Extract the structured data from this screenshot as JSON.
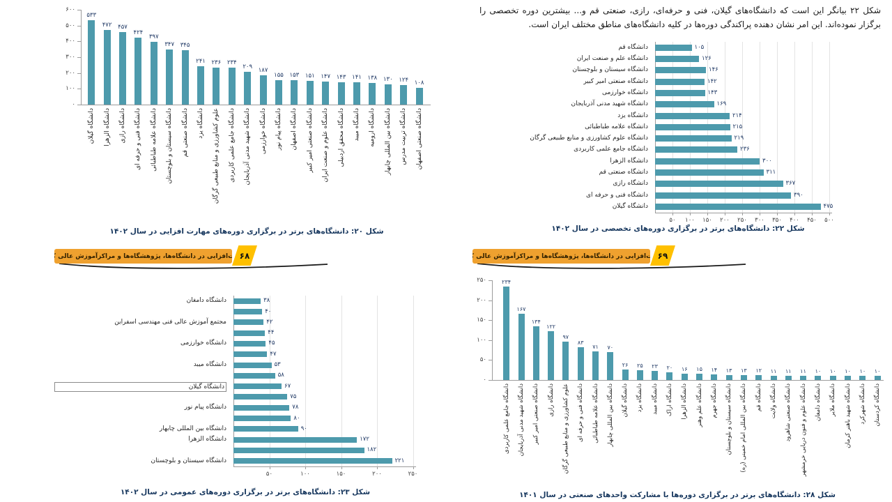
{
  "intro_text": "شکل ۲۲ بیانگر این است که دانشگاه‌های گیلان، فنی و حرفه‌ای، رازی، صنعتی قم و... بیشترین دوره تخصصی را برگزار نموده‌اند. این امر نشان دهنده پراکندگی دوره‌ها در کلیه دانشگاه‌های مناطق مختلف ایران است.",
  "banner": {
    "title": "مهارت‌افزایی در دانشگاه‌ها، پژوهشگاه‌ها و مراکزآموزش عالی کشور",
    "left_page": "۶۸",
    "right_page": "۶۹"
  },
  "colors": {
    "bar": "#4d9aac",
    "value_text": "#1f3864",
    "caption_text": "#17375e",
    "label_text": "#262626",
    "tick_text": "#404040",
    "axis": "#9b9b9b",
    "grid": "#e3e3e3",
    "banner_orange": "#efa12f",
    "banner_text": "#332200",
    "tag_yellow": "#ffc000",
    "swoosh": "#1a1a1a"
  },
  "chart_data": [
    {
      "id": "fig20",
      "type": "bar",
      "orientation": "vertical",
      "caption": "شکل ۲۰: دانشگاه‌های برتر در برگزاری دوره‌های مهارت افزایی در سال ۱۴۰۲",
      "axis_range": [
        0,
        600
      ],
      "grid": false,
      "ticks": [
        {
          "v": 600,
          "t": "۶۰۰"
        },
        {
          "v": 500,
          "t": "۵۰۰"
        },
        {
          "v": 400,
          "t": "۴۰۰"
        },
        {
          "v": 300,
          "t": "۳۰۰"
        },
        {
          "v": 200,
          "t": "۲۰۰"
        },
        {
          "v": 100,
          "t": "۱۰۰"
        },
        {
          "v": 0,
          "t": "۰"
        }
      ],
      "bars": [
        {
          "label": "دانشگاه گیلان",
          "v": 533,
          "t": "۵۳۳"
        },
        {
          "label": "دانشگاه الزهرا",
          "v": 472,
          "t": "۴۷۲"
        },
        {
          "label": "دانشگاه رازی",
          "v": 457,
          "t": "۴۵۷"
        },
        {
          "label": "دانشگاه فنی و حرفه ای",
          "v": 424,
          "t": "۴۲۴"
        },
        {
          "label": "دانشگاه علامه طباطبائی",
          "v": 397,
          "t": "۳۹۷"
        },
        {
          "label": "دانشگاه سیستان و بلوچستان",
          "v": 347,
          "t": "۳۴۷"
        },
        {
          "label": "دانشگاه صنعتی قم",
          "v": 345,
          "t": "۳۴۵"
        },
        {
          "label": "دانشگاه یزد",
          "v": 241,
          "t": "۲۴۱"
        },
        {
          "label": "علوم کشاورزی و منابع طبیعی گرگان",
          "v": 236,
          "t": "۲۳۶"
        },
        {
          "label": "دانشگاه جامع علمی کاربردی",
          "v": 234,
          "t": "۲۳۴"
        },
        {
          "label": "دانشگاه شهید مدنی آذربایجان",
          "v": 209,
          "t": "۲۰۹"
        },
        {
          "label": "دانشگاه خوارزمی",
          "v": 187,
          "t": "۱۸۷"
        },
        {
          "label": "دانشگاه پیام نور",
          "v": 155,
          "t": "۱۵۵"
        },
        {
          "label": "دانشگاه اصفهان",
          "v": 153,
          "t": "۱۵۳"
        },
        {
          "label": "دانشگاه صنعتی امیر کبیر",
          "v": 151,
          "t": "۱۵۱"
        },
        {
          "label": "دانشگاه علوم و صنعت ایران",
          "v": 147,
          "t": "۱۴۷"
        },
        {
          "label": "دانشگاه محقق اردبیلی",
          "v": 143,
          "t": "۱۴۳"
        },
        {
          "label": "دانشگاه میبد",
          "v": 141,
          "t": "۱۴۱"
        },
        {
          "label": "دانشگاه ارومیه",
          "v": 138,
          "t": "۱۳۸"
        },
        {
          "label": "دانشگاه بین المللی چابهار",
          "v": 130,
          "t": "۱۳۰"
        },
        {
          "label": "دانشگاه تربیت مدرس",
          "v": 124,
          "t": "۱۲۴"
        },
        {
          "label": "دانشگاه صنعتی اصفهان",
          "v": 108,
          "t": "۱۰۸"
        }
      ]
    },
    {
      "id": "fig22",
      "type": "bar",
      "orientation": "horizontal",
      "caption": "شکل ۲۲: دانشگاه‌های برتر در برگزاری دوره‌های  تخصصی در سال ۱۴۰۲",
      "axis_range": [
        0,
        500
      ],
      "grid": true,
      "ticks": [
        {
          "v": 50,
          "t": "۵۰"
        },
        {
          "v": 100,
          "t": "۱۰۰"
        },
        {
          "v": 150,
          "t": "۱۵۰"
        },
        {
          "v": 200,
          "t": "۲۰۰"
        },
        {
          "v": 250,
          "t": "۲۵۰"
        },
        {
          "v": 300,
          "t": "۳۰۰"
        },
        {
          "v": 350,
          "t": "۳۵۰"
        },
        {
          "v": 400,
          "t": "۴۰۰"
        },
        {
          "v": 450,
          "t": "۴۵۰"
        },
        {
          "v": 500,
          "t": "۵۰۰"
        }
      ],
      "bars": [
        {
          "label": "دانشگاه قم",
          "v": 105,
          "t": "۱۰۵"
        },
        {
          "label": "دانشگاه علم و صنعت ایران",
          "v": 126,
          "t": "۱۲۶"
        },
        {
          "label": "دانشگاه سیستان و بلوچستان",
          "v": 146,
          "t": "۱۴۶"
        },
        {
          "label": "دانشگاه صنعتی امیر کبیر",
          "v": 142,
          "t": "۱۴۲"
        },
        {
          "label": "دانشگاه خوارزمی",
          "v": 143,
          "t": "۱۴۳"
        },
        {
          "label": "دانشگاه شهید مدنی آذربایجان",
          "v": 169,
          "t": "۱۶۹"
        },
        {
          "label": "دانشگاه یزد",
          "v": 214,
          "t": "۲۱۴"
        },
        {
          "label": "دانشگاه علامه طباطبائی",
          "v": 215,
          "t": "۲۱۵"
        },
        {
          "label": "دانشگاه علوم کشاورزی و منابع طبیعی گرگان",
          "v": 219,
          "t": "۲۱۹"
        },
        {
          "label": "دانشگاه جامع علمی کاربردی",
          "v": 236,
          "t": "۲۳۶"
        },
        {
          "label": "دانشگاه الزهرا",
          "v": 300,
          "t": "۳۰۰"
        },
        {
          "label": "دانشگاه صنعتی قم",
          "v": 311,
          "t": "۳۱۱"
        },
        {
          "label": "دانشگاه رازی",
          "v": 367,
          "t": "۳۶۷"
        },
        {
          "label": "دانشگاه فنی و حرفه ای",
          "v": 390,
          "t": "۳۹۰"
        },
        {
          "label": "دانشگاه گیلان",
          "v": 475,
          "t": "۴۷۵"
        }
      ]
    },
    {
      "id": "fig23",
      "type": "bar",
      "orientation": "horizontal",
      "caption": "شکل ۲۳: دانشگاه‌های برتر در برگزاری دوره‌های عمومی در سال ۱۴۰۲",
      "axis_range": [
        0,
        250
      ],
      "grid": true,
      "ticks": [
        {
          "v": 50,
          "t": "۵۰"
        },
        {
          "v": 100,
          "t": "۱۰۰"
        },
        {
          "v": 150,
          "t": "۱۵۰"
        },
        {
          "v": 200,
          "t": "۲۰۰"
        },
        {
          "v": 250,
          "t": "۲۵۰"
        }
      ],
      "bars": [
        {
          "label": "دانشگاه دامغان",
          "v": 38,
          "t": "۳۸"
        },
        {
          "label": "",
          "v": 40,
          "t": "۴۰"
        },
        {
          "label": "مجتمع آموزش عالی فنی مهندسی اسفراین",
          "v": 42,
          "t": "۴۲"
        },
        {
          "label": "",
          "v": 44,
          "t": "۴۴"
        },
        {
          "label": "دانشگاه خوارزمی",
          "v": 45,
          "t": "۴۵"
        },
        {
          "label": "",
          "v": 47,
          "t": "۴۷"
        },
        {
          "label": "دانشگاه میبد",
          "v": 53,
          "t": "۵۳"
        },
        {
          "label": "",
          "v": 58,
          "t": "۵۸"
        },
        {
          "label": "دانشگاه گیلان",
          "v": 67,
          "t": "۶۷",
          "boxed": true
        },
        {
          "label": "",
          "v": 75,
          "t": "۷۵"
        },
        {
          "label": "دانشگاه پیام نور",
          "v": 78,
          "t": "۷۸"
        },
        {
          "label": "",
          "v": 80,
          "t": "۸۰"
        },
        {
          "label": "دانشگاه بین المللی چابهار",
          "v": 90,
          "t": "۹۰"
        },
        {
          "label": "دانشگاه الزهرا",
          "v": 172,
          "t": "۱۷۲"
        },
        {
          "label": "",
          "v": 182,
          "t": "۱۸۲"
        },
        {
          "label": "دانشگاه سیستان و بلوچستان",
          "v": 221,
          "t": "۲۲۱"
        }
      ]
    },
    {
      "id": "fig28",
      "type": "bar",
      "orientation": "vertical",
      "caption": "شکل ۲۸: دانشگاه‌های برتر در برگزاری دوره‌ها با مشارکت واحدهای صنعتی در سال ۱۴۰۱",
      "axis_range": [
        0,
        250
      ],
      "grid": false,
      "ticks": [
        {
          "v": 250,
          "t": "۲۵۰"
        },
        {
          "v": 200,
          "t": "۲۰۰"
        },
        {
          "v": 150,
          "t": "۱۵۰"
        },
        {
          "v": 100,
          "t": "۱۰۰"
        },
        {
          "v": 50,
          "t": "۵۰"
        },
        {
          "v": 0,
          "t": "۰"
        }
      ],
      "bars": [
        {
          "label": "دانشگاه جامع علمی کاربردی",
          "v": 234,
          "t": "۲۳۴"
        },
        {
          "label": "دانشگاه شهید مدنی آذربایجان",
          "v": 167,
          "t": "۱۶۷"
        },
        {
          "label": "دانشگاه صنعتی امیر کبیر",
          "v": 134,
          "t": "۱۳۴"
        },
        {
          "label": "دانشگاه رازی",
          "v": 122,
          "t": "۱۲۲"
        },
        {
          "label": "علوم کشاورزی و منابع طبیعی گرگان",
          "v": 97,
          "t": "۹۷"
        },
        {
          "label": "دانشگاه فنی و حرفه ای",
          "v": 83,
          "t": "۸۳"
        },
        {
          "label": "دانشگاه علامه طباطبائی",
          "v": 71,
          "t": "۷۱"
        },
        {
          "label": "دانشگاه بین المللی چابهار",
          "v": 70,
          "t": "۷۰"
        },
        {
          "label": "دانشگاه گیلان",
          "v": 26,
          "t": "۲۶"
        },
        {
          "label": "دانشگاه یزد",
          "v": 25,
          "t": "۲۵"
        },
        {
          "label": "دانشگاه میبد",
          "v": 23,
          "t": "۲۳"
        },
        {
          "label": "دانشگاه اراک",
          "v": 20,
          "t": "۲۰"
        },
        {
          "label": "دانشگاه الزهرا",
          "v": 16,
          "t": "۱۶"
        },
        {
          "label": "دانشگاه علم وهنر",
          "v": 15,
          "t": "۱۵"
        },
        {
          "label": "دانشگاه جهرم",
          "v": 14,
          "t": "۱۴"
        },
        {
          "label": "دانشگاه سیستان و بلوچستان",
          "v": 13,
          "t": "۱۳"
        },
        {
          "label": "دانشگاه بین المللی امام خمینی (ره)",
          "v": 13,
          "t": "۱۳"
        },
        {
          "label": "دانشگاه قم",
          "v": 12,
          "t": "۱۲"
        },
        {
          "label": "دانشگاه ولایت",
          "v": 11,
          "t": "۱۱"
        },
        {
          "label": "دانشگاه صنعتی شاهرود",
          "v": 11,
          "t": "۱۱"
        },
        {
          "label": "دانشگاه علوم و فنون دریایی خرمشهر",
          "v": 11,
          "t": "۱۱"
        },
        {
          "label": "دانشگاه دامغان",
          "v": 10,
          "t": "۱۰"
        },
        {
          "label": "دانشگاه ملایر",
          "v": 10,
          "t": "۱۰"
        },
        {
          "label": "دانشگاه شهید باهنر کرمان",
          "v": 10,
          "t": "۱۰"
        },
        {
          "label": "دانشگاه شهرکرد",
          "v": 10,
          "t": "۱۰"
        },
        {
          "label": "دانشگاه کردستان",
          "v": 10,
          "t": "۱۰"
        }
      ]
    }
  ]
}
